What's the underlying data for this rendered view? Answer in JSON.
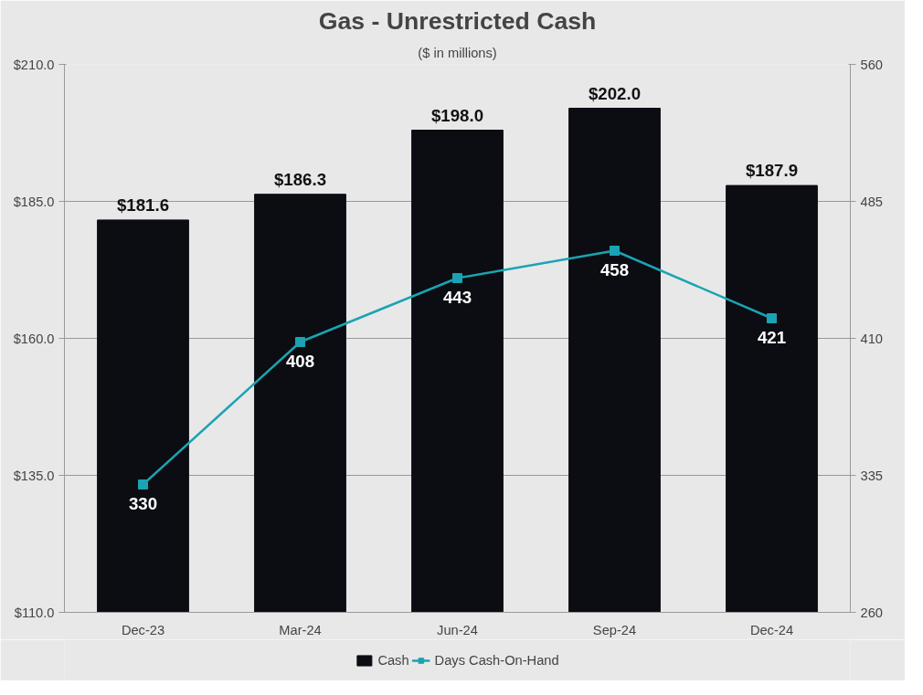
{
  "chart_data": {
    "type": "bar",
    "title": "Gas - Unrestricted Cash",
    "subtitle": "($ in millions)",
    "categories": [
      "Dec-23",
      "Mar-24",
      "Jun-24",
      "Sep-24",
      "Dec-24"
    ],
    "series": [
      {
        "name": "Cash",
        "type": "bar",
        "color": "#0b0d12",
        "values": [
          181.6,
          186.3,
          198.0,
          202.0,
          187.9
        ],
        "value_labels": [
          "$181.6",
          "$186.3",
          "$198.0",
          "$202.0",
          "$187.9"
        ]
      },
      {
        "name": "Days Cash-On-Hand",
        "type": "line",
        "axis": "y2",
        "color": "#1ba3b3",
        "marker": "square",
        "values": [
          330,
          408,
          443,
          458,
          421
        ],
        "value_labels": [
          "330",
          "408",
          "443",
          "458",
          "421"
        ]
      }
    ],
    "ylim": [
      110,
      210
    ],
    "yticks": [
      {
        "value": 110,
        "label": "$110.0"
      },
      {
        "value": 135,
        "label": "$135.0"
      },
      {
        "value": 160,
        "label": "$160.0"
      },
      {
        "value": 185,
        "label": "$185.0"
      },
      {
        "value": 210,
        "label": "$210.0"
      }
    ],
    "y2lim": [
      260,
      560
    ],
    "y2ticks": [
      260,
      335,
      410,
      485,
      560
    ],
    "grid": "y",
    "legend": "bottom"
  }
}
